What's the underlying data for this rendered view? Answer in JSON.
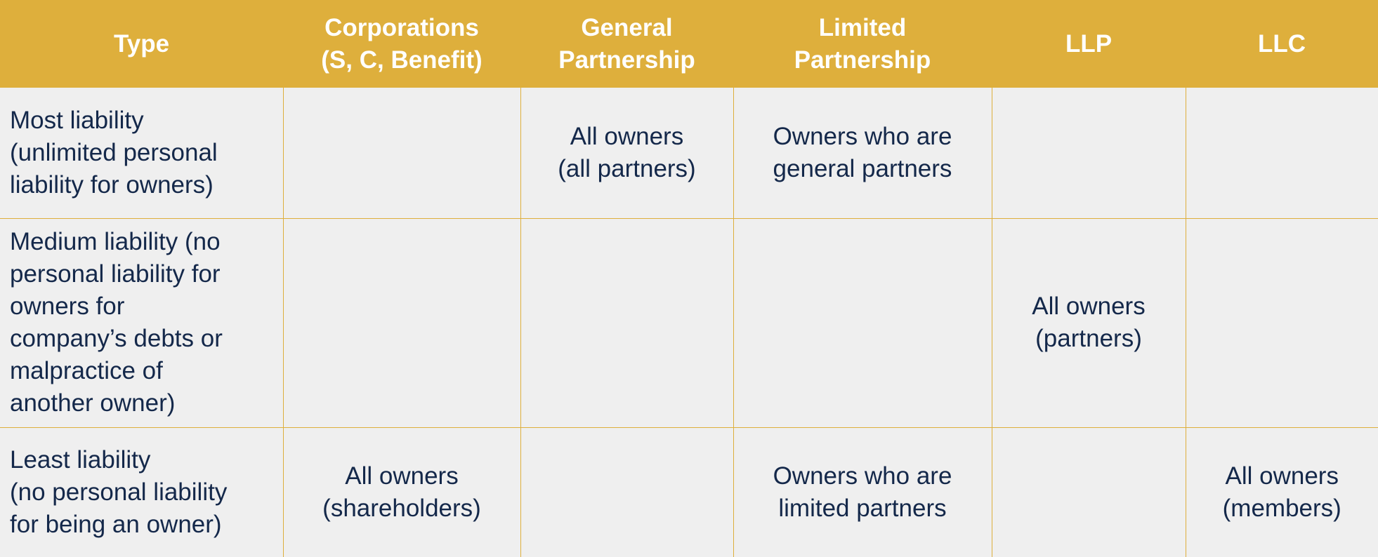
{
  "header": {
    "type": "Type",
    "corporations": "Corporations\n(S, C, Benefit)",
    "general_partnership": "General\nPartnership",
    "limited_partnership": "Limited\nPartnership",
    "llp": "LLP",
    "llc": "LLC"
  },
  "rows": [
    {
      "label": "Most liability\n(unlimited personal\nliability for owners)",
      "corporations": "",
      "general_partnership": "All owners\n(all partners)",
      "limited_partnership": "Owners who are\ngeneral partners",
      "llp": "",
      "llc": ""
    },
    {
      "label": "Medium liability (no\npersonal liability for\nowners for\ncompany’s debts or\nmalpractice of\nanother owner)",
      "corporations": "",
      "general_partnership": "",
      "limited_partnership": "",
      "llp": "All owners\n(partners)",
      "llc": ""
    },
    {
      "label": "Least liability\n(no personal liability\nfor being an owner)",
      "corporations": "All owners\n(shareholders)",
      "general_partnership": "",
      "limited_partnership": "Owners who are\nlimited partners",
      "llp": "",
      "llc": "All owners\n(members)"
    }
  ],
  "colors": {
    "header_bg": "#deaf3c",
    "header_text": "#ffffff",
    "body_bg": "#efefef",
    "body_text": "#14284a",
    "grid_line": "#deaf3c"
  }
}
